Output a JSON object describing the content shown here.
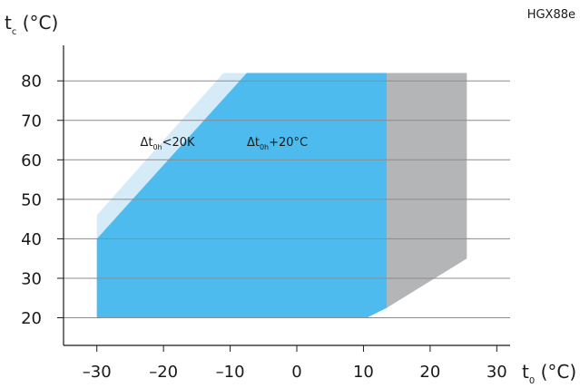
{
  "chart_data": {
    "type": "area",
    "title": "HGX88e",
    "ylabel": {
      "main": "t",
      "sub": "c",
      "unit": " (°C)"
    },
    "xlabel": {
      "main": "t",
      "sub": "0",
      "unit": " (°C)"
    },
    "x_ticks": [
      -30,
      -20,
      -10,
      0,
      10,
      20,
      30
    ],
    "y_ticks": [
      20,
      30,
      40,
      50,
      60,
      70,
      80
    ],
    "xlim": [
      -35,
      32
    ],
    "ylim": [
      13,
      89
    ],
    "grid": "horizontal",
    "colors": {
      "light": "#d6ebf8",
      "blue": "#4ebbee",
      "gray": "#b4b5b7",
      "grid": "#8c8c8c",
      "axis": "#1a1a1a"
    },
    "regions": [
      {
        "id": "superheat-below-20k",
        "color": "light",
        "polygon": [
          [
            -30,
            46
          ],
          [
            -11,
            82
          ],
          [
            13.5,
            82
          ],
          [
            13.5,
            22.5
          ],
          [
            10.5,
            20
          ],
          [
            -30,
            20
          ]
        ]
      },
      {
        "id": "gray-region",
        "color": "gray",
        "polygon": [
          [
            13.5,
            82
          ],
          [
            25.5,
            82
          ],
          [
            25.5,
            35
          ],
          [
            13.5,
            22.5
          ]
        ]
      },
      {
        "id": "superheat-plus-20",
        "color": "blue",
        "polygon": [
          [
            -30,
            40
          ],
          [
            -7.5,
            82
          ],
          [
            13.5,
            82
          ],
          [
            13.5,
            22.5
          ],
          [
            10.5,
            20
          ],
          [
            -30,
            20
          ]
        ]
      }
    ],
    "annotations": [
      {
        "id": "annotation-superheat-below-20k",
        "prefix": "Δt",
        "sub": "0h",
        "suffix": "<20K",
        "x": -23.5,
        "y": 63.5
      },
      {
        "id": "annotation-superheat-plus-20",
        "prefix": "Δt",
        "sub": "0h",
        "suffix": "+20°C",
        "x": -7.5,
        "y": 63.5
      }
    ]
  }
}
